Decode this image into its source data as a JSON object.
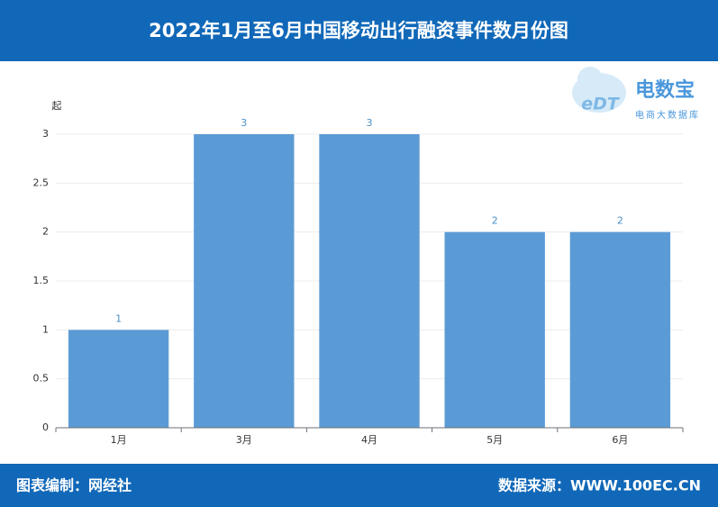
{
  "chart_data": {
    "type": "bar",
    "title": "2022年1月至6月中国移动出行融资事件数月份图",
    "y_label": "起",
    "categories": [
      "1月",
      "3月",
      "4月",
      "5月",
      "6月"
    ],
    "values": [
      1,
      3,
      3,
      2,
      2
    ],
    "color": "#5b9bd5",
    "ylim": [
      0,
      3
    ],
    "yticks": [
      0,
      0.5,
      1,
      1.5,
      2,
      2.5,
      3
    ],
    "grid": true
  },
  "logo": {
    "mark": "eDT",
    "name": "电数宝",
    "subtitle": "电商大数据库"
  },
  "footer": {
    "left": "图表编制：网经社",
    "right": "数据来源：WWW.100EC.CN"
  }
}
